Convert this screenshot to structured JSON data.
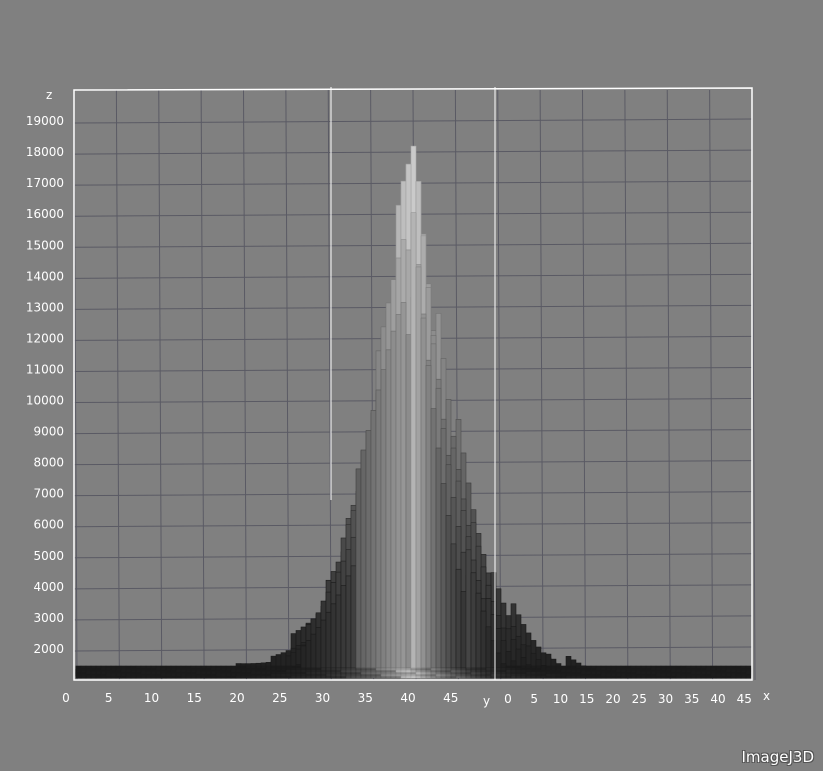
{
  "chart_data": {
    "type": "bar",
    "title": "",
    "zlabel": "z",
    "ylabel": "y",
    "xlabel": "x",
    "zlim": [
      1000,
      20000
    ],
    "z_ticks": [
      2000,
      3000,
      4000,
      5000,
      6000,
      7000,
      8000,
      9000,
      10000,
      11000,
      12000,
      13000,
      14000,
      15000,
      16000,
      17000,
      18000,
      19000
    ],
    "y_ticks": [
      0,
      5,
      10,
      15,
      20,
      25,
      30,
      35,
      40,
      45
    ],
    "x_ticks": [
      0,
      5,
      10,
      15,
      20,
      25,
      30,
      35,
      40,
      45
    ],
    "grid": true,
    "peak": {
      "y": 40,
      "x": 22,
      "z": 20000
    },
    "baseline_z": 1300,
    "profile_along_y": [
      {
        "y": 0,
        "z": 1300
      },
      {
        "y": 5,
        "z": 1350
      },
      {
        "y": 10,
        "z": 1400
      },
      {
        "y": 15,
        "z": 1450
      },
      {
        "y": 20,
        "z": 1600
      },
      {
        "y": 25,
        "z": 2500
      },
      {
        "y": 30,
        "z": 4300
      },
      {
        "y": 35,
        "z": 8500
      },
      {
        "y": 40,
        "z": 20000
      },
      {
        "y": 45,
        "z": 7000
      }
    ],
    "colors": {
      "background": "#808080",
      "grid": "#5a5a64",
      "bars_low": "#1a1a1a",
      "bars_high": "#f2f2f2",
      "frame": "#ffffff"
    }
  },
  "watermark": "ImageJ3D"
}
